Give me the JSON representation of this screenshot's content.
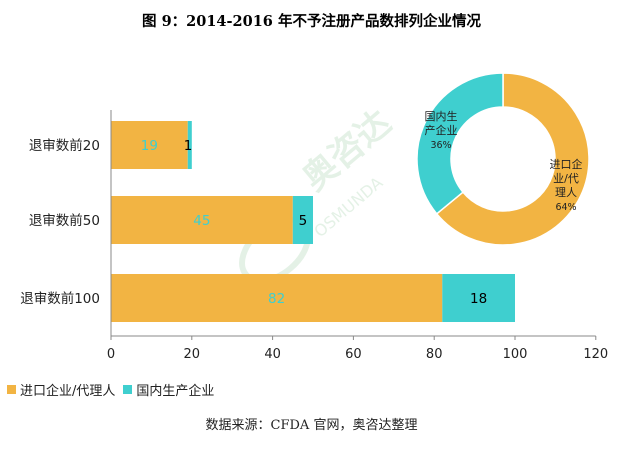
{
  "title": "图 9：2014-2016 年不予注册产品数排列企业情况",
  "source": "数据来源：CFDA 官网，奥咨达整理",
  "watermark": {
    "brand_cn": "奥咨达",
    "brand_en": "OSMUNDA"
  },
  "colors": {
    "import": "#F2B443",
    "domestic": "#3FCFCF",
    "axis": "#888888"
  },
  "legend": [
    {
      "label": "进口企业/代理人",
      "color": "#F2B443"
    },
    {
      "label": "国内生产企业",
      "color": "#3FCFCF"
    }
  ],
  "chart_data": [
    {
      "type": "bar",
      "orientation": "horizontal",
      "stacked": true,
      "categories": [
        "退审数前20",
        "退审数前50",
        "退审数前100"
      ],
      "series": [
        {
          "name": "进口企业/代理人",
          "values": [
            19,
            45,
            82
          ]
        },
        {
          "name": "国内生产企业",
          "values": [
            1,
            5,
            18
          ]
        }
      ],
      "xlim": [
        0,
        120
      ],
      "xticks": [
        0,
        20,
        40,
        60,
        80,
        100,
        120
      ],
      "legend_position": "bottom-left",
      "grid": false
    },
    {
      "type": "pie",
      "donut": true,
      "slices": [
        {
          "label": "进口企业/代理人",
          "label_lines": [
            "进口企",
            "业/代",
            "理人"
          ],
          "value": 64,
          "value_label": "64%"
        },
        {
          "label": "国内生产企业",
          "label_lines": [
            "国内生",
            "产企业"
          ],
          "value": 36,
          "value_label": "36%"
        }
      ]
    }
  ]
}
